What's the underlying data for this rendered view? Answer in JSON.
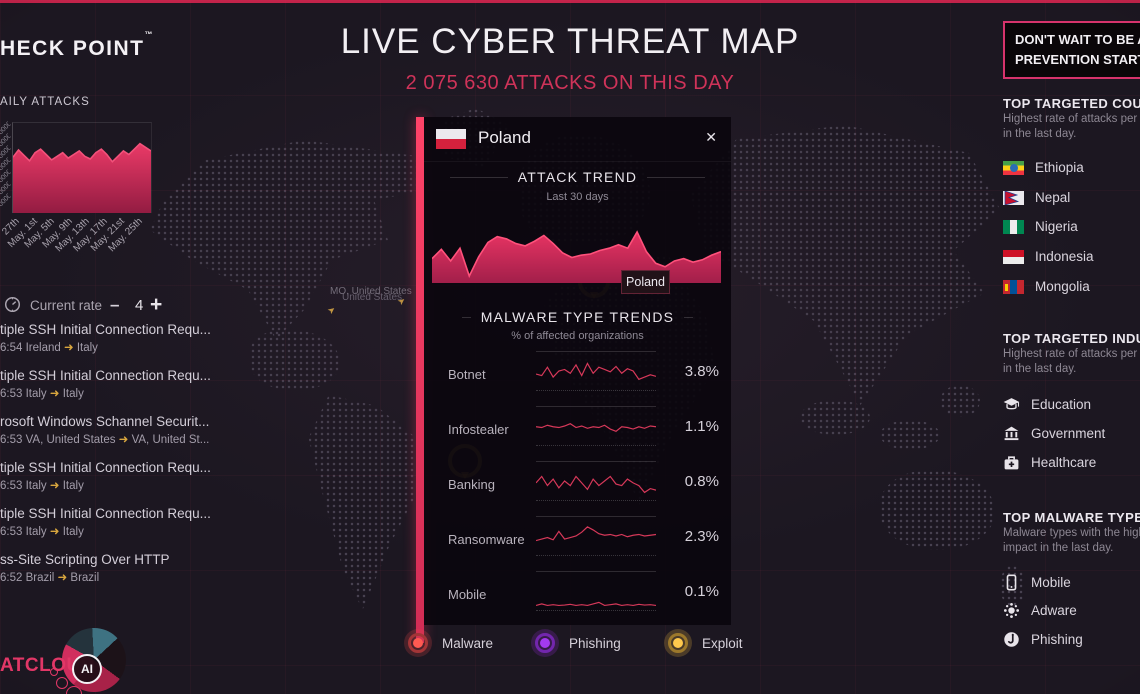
{
  "header": {
    "logo_text": "HECK POINT",
    "logo_tm": "™",
    "title": "LIVE CYBER THREAT MAP",
    "subtitle": "2 075 630 ATTACKS ON THIS DAY",
    "banner": {
      "line1": "DON'T WAIT TO BE ATTACKED",
      "line2": "PREVENTION STARTS"
    }
  },
  "daily": {
    "title": "AILY ATTACKS",
    "x_labels": [
      "27th",
      "May. 1st",
      "May. 5th",
      "May. 9th",
      "May. 13th",
      "May. 17th",
      "May. 21st",
      "May. 25th"
    ],
    "y_fragments": [
      "000000",
      "000000",
      "000000",
      "000000",
      "000000",
      "000000",
      "000000"
    ],
    "chart": {
      "points": [
        38,
        30,
        36,
        42,
        33,
        29,
        35,
        41,
        37,
        33,
        39,
        35,
        31,
        37,
        40,
        33,
        29,
        35,
        43,
        37,
        31,
        35,
        29,
        23,
        27,
        31
      ],
      "stroke": "#f2517a",
      "fill_top": "#ea3a67",
      "fill_bottom": "#931c42"
    }
  },
  "rate": {
    "label": "Current rate",
    "minus": "–",
    "value": "4",
    "plus": "+"
  },
  "attacks": {
    "items": [
      {
        "title": "tiple SSH Initial Connection Requ...",
        "time": "6:54",
        "source": "Ireland",
        "arrow": "➜",
        "target": "Italy"
      },
      {
        "title": "tiple SSH Initial Connection Requ...",
        "time": "6:53",
        "source": "Italy",
        "arrow": "➜",
        "target": "Italy"
      },
      {
        "title": "rosoft Windows Schannel Securit...",
        "time": "6:53",
        "source": "VA, United States",
        "arrow": "➜",
        "target": "VA, United St..."
      },
      {
        "title": "tiple SSH Initial Connection Requ...",
        "time": "6:53",
        "source": "Italy",
        "arrow": "➜",
        "target": "Italy"
      },
      {
        "title": "tiple SSH Initial Connection Requ...",
        "time": "6:53",
        "source": "Italy",
        "arrow": "➜",
        "target": "Italy"
      },
      {
        "title": "ss-Site Scripting Over HTTP",
        "time": "6:52",
        "source": "Brazil",
        "arrow": "➜",
        "target": "Brazil"
      }
    ]
  },
  "map": {
    "label_primary": "MO, United States",
    "label_secondary": "United States"
  },
  "popup": {
    "country": "Poland",
    "close": "✕",
    "trend_title": "ATTACK TREND",
    "trend_subtitle": "Last 30 days",
    "trend_chart": {
      "points": [
        58,
        42,
        62,
        40,
        88,
        55,
        30,
        20,
        24,
        32,
        36,
        28,
        18,
        32,
        48,
        56,
        52,
        50,
        44,
        40,
        34,
        40,
        12,
        46,
        66,
        72,
        62,
        58,
        64,
        60,
        52,
        46
      ],
      "stroke": "#ff517b",
      "fill_top": "#e83463",
      "fill_bottom": "#a21f4a"
    },
    "tooltip": "Poland",
    "malware_title": "MALWARE TYPE TRENDS",
    "malware_subtitle": "% of affected organizations",
    "rows": [
      {
        "label": "Botnet",
        "value": "3.8%",
        "chart": {
          "points": [
            58,
            62,
            40,
            66,
            50,
            46,
            56,
            34,
            62,
            30,
            56,
            40,
            46,
            52,
            38,
            56,
            44,
            50,
            72,
            66,
            60,
            64
          ],
          "stroke": "#d63859"
        }
      },
      {
        "label": "Infostealer",
        "value": "1.1%",
        "chart": {
          "points": [
            52,
            54,
            48,
            52,
            54,
            50,
            44,
            54,
            50,
            56,
            52,
            54,
            48,
            58,
            64,
            52,
            54,
            58,
            52,
            56,
            50,
            52
          ],
          "stroke": "#d63859"
        }
      },
      {
        "label": "Banking",
        "value": "0.8%",
        "chart": {
          "points": [
            55,
            38,
            62,
            45,
            68,
            50,
            62,
            38,
            55,
            72,
            45,
            62,
            50,
            38,
            58,
            62,
            45,
            55,
            62,
            80,
            70,
            74
          ],
          "stroke": "#d63859"
        }
      },
      {
        "label": "Ransomware",
        "value": "2.3%",
        "chart": {
          "points": [
            62,
            58,
            54,
            60,
            38,
            58,
            54,
            50,
            40,
            26,
            34,
            44,
            48,
            46,
            50,
            46,
            52,
            48,
            46,
            50,
            48,
            46
          ],
          "stroke": "#d63859"
        }
      },
      {
        "label": "Mobile",
        "value": "0.1%",
        "chart": {
          "points": [
            88,
            84,
            88,
            86,
            88,
            87,
            85,
            88,
            86,
            88,
            84,
            80,
            88,
            86,
            84,
            88,
            86,
            88,
            85,
            87,
            86,
            88
          ],
          "stroke": "#d63859"
        }
      }
    ]
  },
  "legend": {
    "items": [
      {
        "label": "Malware",
        "color": "#e0484b"
      },
      {
        "label": "Phishing",
        "color": "#9a2ee0"
      },
      {
        "label": "Exploit",
        "color": "#d8a63e"
      }
    ]
  },
  "sidebar": {
    "countries": {
      "title": "TOP TARGETED COUNTRIES",
      "desc1": "Highest rate of attacks per organization",
      "desc2": "in the last day.",
      "items": [
        "Ethiopia",
        "Nepal",
        "Nigeria",
        "Indonesia",
        "Mongolia"
      ]
    },
    "industries": {
      "title": "TOP TARGETED INDUSTRIES",
      "desc1": "Highest rate of attacks per organization",
      "desc2": "in the last day.",
      "items": [
        "Education",
        "Government",
        "Healthcare"
      ]
    },
    "malware": {
      "title": "TOP MALWARE TYPES",
      "desc1": "Malware types with the highest",
      "desc2": "impact in the last day.",
      "items": [
        "Mobile",
        "Adware",
        "Phishing"
      ]
    }
  },
  "footer": {
    "brand": "ATCLOUD",
    "badge": "AI"
  }
}
